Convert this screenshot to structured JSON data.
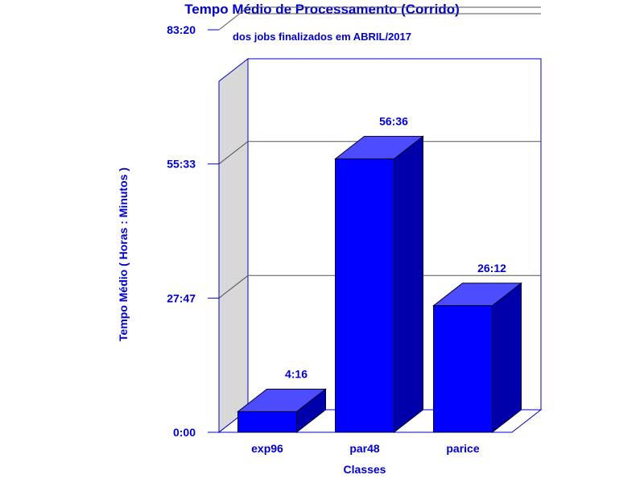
{
  "chart_data": {
    "type": "bar",
    "title": "Tempo Médio de Processamento (Corrido)",
    "subtitle": "dos jobs finalizados em ABRIL/2017",
    "xlabel": "Classes",
    "ylabel": "Tempo Médio ( Horas : Minutos )",
    "categories": [
      "exp96",
      "par48",
      "parice"
    ],
    "values_minutes": [
      256,
      3396,
      1572
    ],
    "value_labels": [
      "4:16",
      "56:36",
      "26:12"
    ],
    "y_ticks_minutes": [
      0,
      1667,
      3333,
      5000
    ],
    "y_tick_labels": [
      "0:00",
      "27:47",
      "55:33",
      "83:20"
    ],
    "ylim_minutes": [
      0,
      5000
    ],
    "grid": true,
    "style": "3d",
    "colors": {
      "bar_front": "#0000ff",
      "bar_top": "#4d4dff",
      "bar_side": "#0000aa",
      "text": "#0000cc",
      "axis": "#0000cc",
      "wall": "#d8d8d8"
    }
  }
}
